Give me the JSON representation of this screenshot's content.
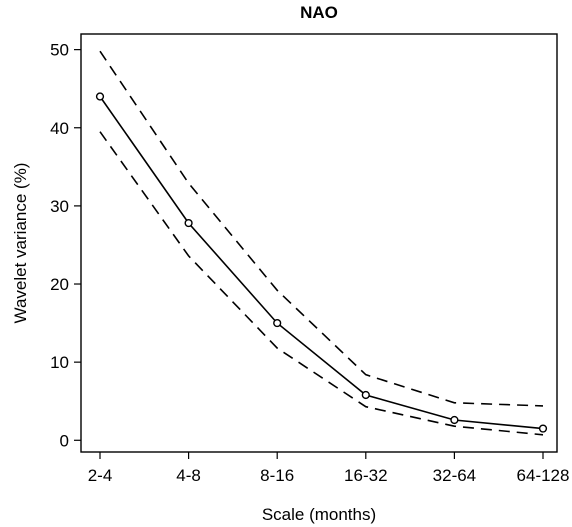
{
  "chart_data": {
    "type": "line",
    "title": "NAO",
    "xlabel": "Scale (months)",
    "ylabel": "Wavelet variance (%)",
    "categories": [
      "2-4",
      "4-8",
      "8-16",
      "16-32",
      "32-64",
      "64-128"
    ],
    "ylim": [
      -1.5,
      52
    ],
    "yticks": [
      0,
      10,
      20,
      30,
      40,
      50
    ],
    "grid": false,
    "series": [
      {
        "values": [
          44.0,
          27.8,
          15.0,
          5.8,
          2.6,
          1.5
        ],
        "style": "solid",
        "markers": "open-circle",
        "color": "#000000"
      },
      {
        "values": [
          49.8,
          32.9,
          19.2,
          8.4,
          4.8,
          4.4
        ],
        "style": "dashed",
        "markers": "none",
        "color": "#000000"
      },
      {
        "values": [
          39.5,
          23.6,
          11.8,
          4.3,
          1.8,
          0.7
        ],
        "style": "dashed",
        "markers": "none",
        "color": "#000000"
      }
    ]
  }
}
